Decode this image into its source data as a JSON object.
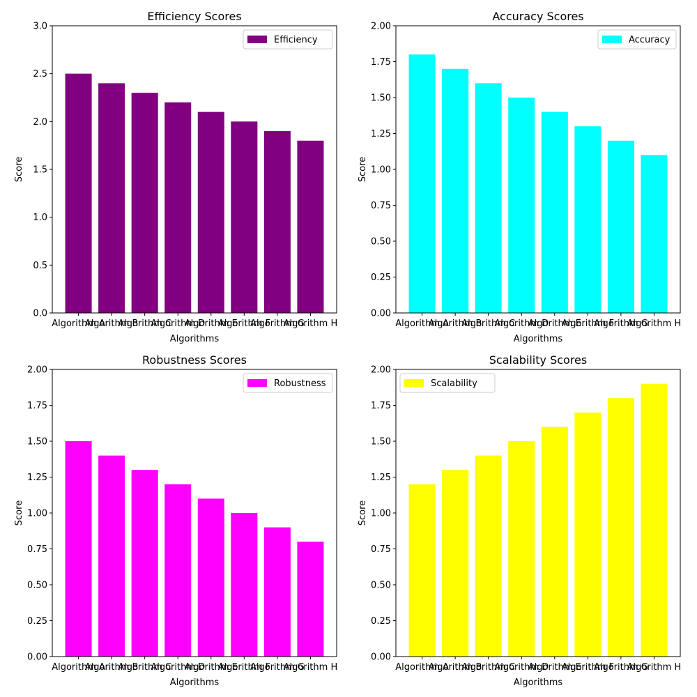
{
  "chart_data": [
    {
      "type": "bar",
      "title": "Efficiency Scores",
      "xlabel": "Algorithms",
      "ylabel": "Score",
      "categories": [
        "Algorithm A",
        "Algorithm B",
        "Algorithm C",
        "Algorithm D",
        "Algorithm E",
        "Algorithm F",
        "Algorithm G",
        "Algorithm H"
      ],
      "series": [
        {
          "name": "Efficiency",
          "values": [
            2.5,
            2.4,
            2.3,
            2.2,
            2.1,
            2.0,
            1.9,
            1.8
          ],
          "color": "#800080"
        }
      ],
      "ylim": [
        0,
        3
      ],
      "yticks": [
        0.0,
        0.5,
        1.0,
        1.5,
        2.0,
        2.5,
        3.0
      ],
      "ytick_labels": [
        "0.0",
        "0.5",
        "1.0",
        "1.5",
        "2.0",
        "2.5",
        "3.0"
      ],
      "legend": "upper-right",
      "grid": false
    },
    {
      "type": "bar",
      "title": "Accuracy Scores",
      "xlabel": "Algorithms",
      "ylabel": "Score",
      "categories": [
        "Algorithm A",
        "Algorithm B",
        "Algorithm C",
        "Algorithm D",
        "Algorithm E",
        "Algorithm F",
        "Algorithm G",
        "Algorithm H"
      ],
      "series": [
        {
          "name": "Accuracy",
          "values": [
            1.8,
            1.7,
            1.6,
            1.5,
            1.4,
            1.3,
            1.2,
            1.1
          ],
          "color": "#00ffff"
        }
      ],
      "ylim": [
        0,
        2
      ],
      "yticks": [
        0.0,
        0.25,
        0.5,
        0.75,
        1.0,
        1.25,
        1.5,
        1.75,
        2.0
      ],
      "ytick_labels": [
        "0.00",
        "0.25",
        "0.50",
        "0.75",
        "1.00",
        "1.25",
        "1.50",
        "1.75",
        "2.00"
      ],
      "legend": "upper-right",
      "grid": false
    },
    {
      "type": "bar",
      "title": "Robustness Scores",
      "xlabel": "Algorithms",
      "ylabel": "Score",
      "categories": [
        "Algorithm A",
        "Algorithm B",
        "Algorithm C",
        "Algorithm D",
        "Algorithm E",
        "Algorithm F",
        "Algorithm G",
        "Algorithm H"
      ],
      "series": [
        {
          "name": "Robustness",
          "values": [
            1.5,
            1.4,
            1.3,
            1.2,
            1.1,
            1.0,
            0.9,
            0.8
          ],
          "color": "#ff00ff"
        }
      ],
      "ylim": [
        0,
        2
      ],
      "yticks": [
        0.0,
        0.25,
        0.5,
        0.75,
        1.0,
        1.25,
        1.5,
        1.75,
        2.0
      ],
      "ytick_labels": [
        "0.00",
        "0.25",
        "0.50",
        "0.75",
        "1.00",
        "1.25",
        "1.50",
        "1.75",
        "2.00"
      ],
      "legend": "upper-right",
      "grid": false
    },
    {
      "type": "bar",
      "title": "Scalability Scores",
      "xlabel": "Algorithms",
      "ylabel": "Score",
      "categories": [
        "Algorithm A",
        "Algorithm B",
        "Algorithm C",
        "Algorithm D",
        "Algorithm E",
        "Algorithm F",
        "Algorithm G",
        "Algorithm H"
      ],
      "series": [
        {
          "name": "Scalability",
          "values": [
            1.2,
            1.3,
            1.4,
            1.5,
            1.6,
            1.7,
            1.8,
            1.9
          ],
          "color": "#ffff00"
        }
      ],
      "ylim": [
        0,
        2
      ],
      "yticks": [
        0.0,
        0.25,
        0.5,
        0.75,
        1.0,
        1.25,
        1.5,
        1.75,
        2.0
      ],
      "ytick_labels": [
        "0.00",
        "0.25",
        "0.50",
        "0.75",
        "1.00",
        "1.25",
        "1.50",
        "1.75",
        "2.00"
      ],
      "legend": "upper-left",
      "grid": false
    }
  ]
}
